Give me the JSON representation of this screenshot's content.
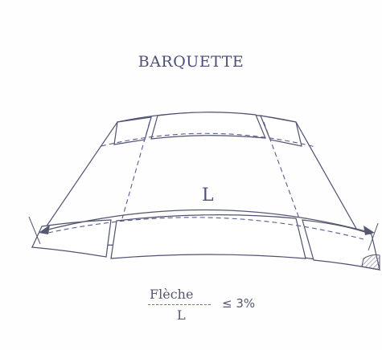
{
  "diagram": {
    "title": "BARQUETTE",
    "length_label": "L",
    "formula": {
      "numerator": "Flèche",
      "denominator": "L",
      "relation": "≤ 3%"
    },
    "colors": {
      "outline": "#4f5170",
      "dashed": "#5a5c8a",
      "arrow": "#55586f",
      "hatch": "#8a8aa0"
    }
  }
}
